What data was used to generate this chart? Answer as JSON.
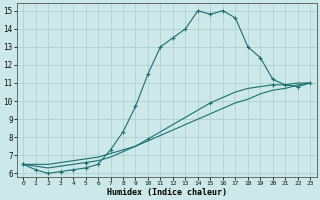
{
  "xlabel": "Humidex (Indice chaleur)",
  "bg_color": "#cce8e8",
  "grid_color": "#b0d0d0",
  "line_color": "#1a7070",
  "xlim": [
    -0.5,
    23.5
  ],
  "ylim": [
    5.8,
    15.4
  ],
  "xticks": [
    0,
    1,
    2,
    3,
    4,
    5,
    6,
    7,
    8,
    9,
    10,
    11,
    12,
    13,
    14,
    15,
    16,
    17,
    18,
    19,
    20,
    21,
    22,
    23
  ],
  "yticks": [
    6,
    7,
    8,
    9,
    10,
    11,
    12,
    13,
    14,
    15
  ],
  "series1_x": [
    0,
    1,
    2,
    3,
    4,
    5,
    6,
    7,
    8,
    9,
    10,
    11,
    12,
    13,
    14,
    15,
    16,
    17,
    18,
    19,
    20,
    21,
    22,
    23
  ],
  "series1_y": [
    6.5,
    6.2,
    6.0,
    6.1,
    6.2,
    6.3,
    6.5,
    7.3,
    8.3,
    9.7,
    11.5,
    13.0,
    13.5,
    14.0,
    15.0,
    14.8,
    15.0,
    14.6,
    13.0,
    12.4,
    11.2,
    10.9,
    10.8,
    11.0
  ],
  "series2_x": [
    0,
    1,
    2,
    3,
    4,
    5,
    6,
    7,
    8,
    9,
    10,
    11,
    12,
    13,
    14,
    15,
    16,
    17,
    18,
    19,
    20,
    21,
    22,
    23
  ],
  "series2_y": [
    6.5,
    6.5,
    6.5,
    6.6,
    6.7,
    6.8,
    6.9,
    7.1,
    7.3,
    7.5,
    7.8,
    8.1,
    8.4,
    8.7,
    9.0,
    9.3,
    9.6,
    9.9,
    10.1,
    10.4,
    10.6,
    10.7,
    10.9,
    11.0
  ],
  "series3_x": [
    0,
    1,
    2,
    3,
    4,
    5,
    6,
    7,
    8,
    9,
    10,
    11,
    12,
    13,
    14,
    15,
    16,
    17,
    18,
    19,
    20,
    21,
    22,
    23
  ],
  "series3_y": [
    6.5,
    6.4,
    6.3,
    6.4,
    6.5,
    6.6,
    6.7,
    6.9,
    7.2,
    7.5,
    7.9,
    8.3,
    8.7,
    9.1,
    9.5,
    9.9,
    10.2,
    10.5,
    10.7,
    10.8,
    10.9,
    10.9,
    11.0,
    11.0
  ]
}
